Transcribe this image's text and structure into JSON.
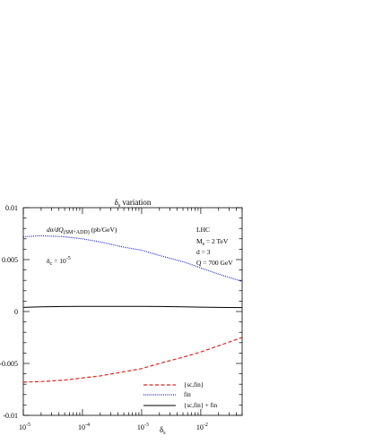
{
  "chart_data": {
    "type": "line",
    "title": {
      "main": "δ",
      "sub": "s",
      "rest": " variation"
    },
    "xlabel": {
      "main": "δ",
      "sub": "s"
    },
    "ylabel": "",
    "x_scale": "log",
    "xlim": [
      1e-05,
      0.05
    ],
    "ylim": [
      -0.01,
      0.01
    ],
    "x_tick_labels": [
      {
        "value": 1e-05,
        "base": "10",
        "exp": "-5"
      },
      {
        "value": 0.0001,
        "base": "10",
        "exp": "-4"
      },
      {
        "value": 0.001,
        "base": "10",
        "exp": "-3"
      },
      {
        "value": 0.01,
        "base": "10",
        "exp": "-2"
      }
    ],
    "y_tick_labels": [
      {
        "value": 0.01,
        "label": "0.01"
      },
      {
        "value": 0.005,
        "label": "0.005"
      },
      {
        "value": 0,
        "label": "0"
      },
      {
        "value": -0.005,
        "label": "-0.005"
      },
      {
        "value": -0.01,
        "label": "-0.01"
      }
    ],
    "annotations": {
      "observable": {
        "main": "dσ/dQ",
        "sub": "(SM+ADD)",
        "rest": "  (pb/GeV)"
      },
      "cut": {
        "main": "δ",
        "sub": "c",
        "rest": " = 10",
        "sup": "-5"
      },
      "params": [
        {
          "key": "collider",
          "text": "LHC"
        },
        {
          "key": "ms",
          "main": "M",
          "sub": "s",
          "rest": " = 2 TeV"
        },
        {
          "key": "d",
          "text": "d = 3"
        },
        {
          "key": "q",
          "text": "Q = 700 GeV"
        }
      ]
    },
    "legend_position": "bottom-right",
    "series": [
      {
        "name": "{sc,fin}",
        "color": "#e8221c",
        "style": "dashed",
        "x": [
          1e-05,
          2e-05,
          5e-05,
          0.0001,
          0.0002,
          0.0005,
          0.001,
          0.002,
          0.005,
          0.01,
          0.02,
          0.05
        ],
        "values": [
          -0.0068,
          -0.00675,
          -0.0066,
          -0.0064,
          -0.0062,
          -0.0058,
          -0.0055,
          -0.005,
          -0.0044,
          -0.0039,
          -0.0033,
          -0.0025
        ]
      },
      {
        "name": "fin",
        "color": "#1c22d8",
        "style": "dotted",
        "x": [
          1e-05,
          2e-05,
          5e-05,
          0.0001,
          0.0002,
          0.0005,
          0.001,
          0.002,
          0.005,
          0.01,
          0.02,
          0.05
        ],
        "values": [
          0.0072,
          0.0073,
          0.0072,
          0.007,
          0.0067,
          0.0062,
          0.0059,
          0.0054,
          0.0048,
          0.0042,
          0.0036,
          0.0029
        ]
      },
      {
        "name": "{sc,fin} + fin",
        "color": "#000000",
        "style": "solid",
        "x": [
          1e-05,
          2e-05,
          5e-05,
          0.0001,
          0.0002,
          0.0005,
          0.001,
          0.002,
          0.005,
          0.01,
          0.02,
          0.05
        ],
        "values": [
          0.0004,
          0.00045,
          0.00048,
          0.0005,
          0.0005,
          0.0005,
          0.0005,
          0.00048,
          0.00045,
          0.00042,
          0.0004,
          0.00038
        ]
      }
    ]
  }
}
